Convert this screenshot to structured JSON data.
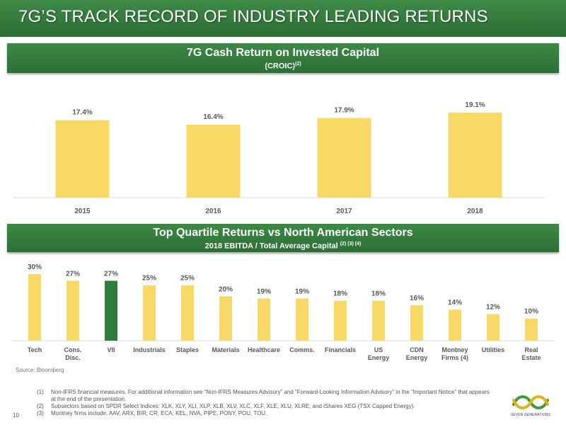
{
  "page": {
    "title": "7G’S TRACK RECORD OF INDUSTRY LEADING RETURNS",
    "source": "Source: Bloomberg",
    "page_number": "10",
    "logo_text": "SEVEN GENERATIONS"
  },
  "croic": {
    "title": "7G Cash Return on Invested Capital",
    "subtitle": "(CROIC)",
    "subtitle_sup": "(2)"
  },
  "sectors": {
    "title": "Top Quartile Returns vs North American Sectors",
    "subtitle": "2018 EBITDA / Total Average Capital ",
    "subtitle_sup": "(2) (3) (4)"
  },
  "footnotes": [
    {
      "num": "(1)",
      "text": "Non-IFRS financial measures. For additional information see “Non-IFRS Measures Advisory” and “Forward-Looking Information Advisory” in the “Important Notice” that appears at the end of the presentation."
    },
    {
      "num": "(2)",
      "text": "Subsectors based on SPDR Select Indices: XLK, XLY, XLI, XLP, XLB, XLV, XLC, XLF, XLE, XLU, XLRE, and iShares XEG (TSX Capped Energy)."
    },
    {
      "num": "(3)",
      "text": "Montney firms include: AAV, ARX, BIR, CR, ECA, KEL, NVA, PIPE, PONY, POU, TOU."
    }
  ],
  "chart_data": [
    {
      "type": "bar",
      "categories": [
        "2015",
        "2016",
        "2017",
        "2018"
      ],
      "values": [
        17.4,
        16.4,
        17.9,
        19.1
      ],
      "data_labels": [
        "17.4%",
        "16.4%",
        "17.9%",
        "19.1%"
      ],
      "bar_color": "#f9d966",
      "ylim": [
        0,
        19.1
      ],
      "grid": false
    },
    {
      "type": "bar",
      "categories": [
        "Tech",
        "Cons.\nDisc.",
        "VII",
        "Industrials",
        "Staples",
        "Materials",
        "Healthcare",
        "Comms.",
        "Financials",
        "US\nEnergy",
        "CDN\nEnergy",
        "Montney\nFirms (4)",
        "Utilities",
        "Real\nEstate"
      ],
      "values": [
        30,
        27,
        27,
        25,
        25,
        20,
        19,
        19,
        18,
        18,
        16,
        14,
        12,
        10
      ],
      "data_labels": [
        "30%",
        "27%",
        "27%",
        "25%",
        "25%",
        "20%",
        "19%",
        "19%",
        "18%",
        "18%",
        "16%",
        "14%",
        "12%",
        "10%"
      ],
      "bar_color": "#f9d966",
      "highlight": {
        "category": "VII",
        "color": "#2e7d3c"
      },
      "ylim": [
        0,
        30
      ],
      "grid": false
    }
  ]
}
